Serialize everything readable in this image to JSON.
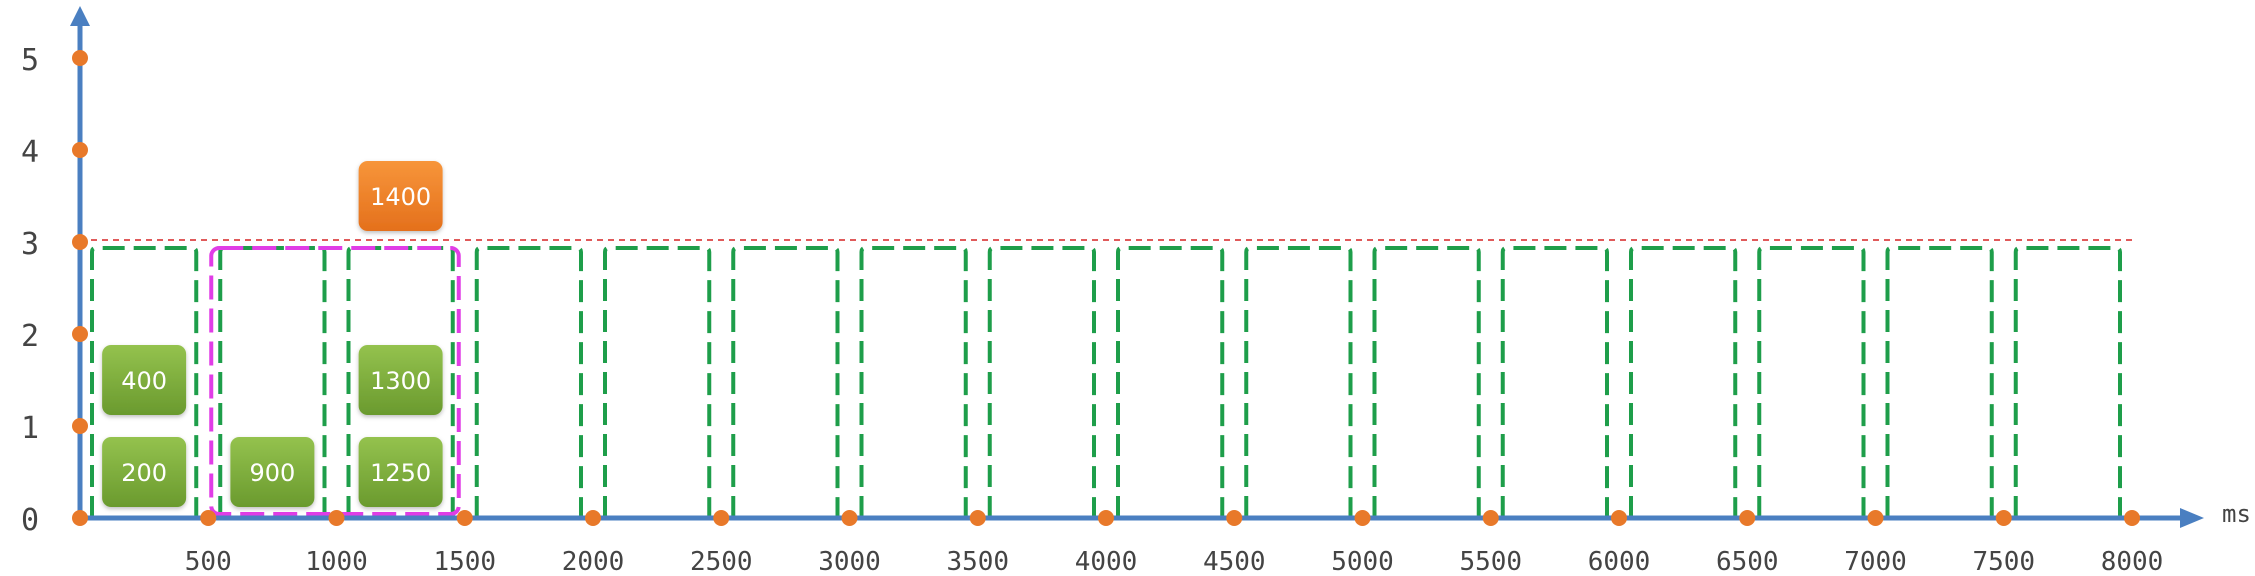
{
  "chart_data": {
    "type": "timeline-diagram",
    "x_unit": "ms",
    "x_ticks": [
      500,
      1000,
      1500,
      2000,
      2500,
      3000,
      3500,
      4000,
      4500,
      5000,
      5500,
      6000,
      6500,
      7000,
      7500,
      8000
    ],
    "y_ticks": [
      0,
      1,
      2,
      3,
      4,
      5
    ],
    "xlim": [
      0,
      8000
    ],
    "ylim": [
      0,
      5
    ],
    "limit_line_y": 3,
    "windows": [
      [
        0,
        500
      ],
      [
        500,
        1000
      ],
      [
        1000,
        1500
      ],
      [
        1500,
        2000
      ],
      [
        2000,
        2500
      ],
      [
        2500,
        3000
      ],
      [
        3000,
        3500
      ],
      [
        3500,
        4000
      ],
      [
        4000,
        4500
      ],
      [
        4500,
        5000
      ],
      [
        5000,
        5500
      ],
      [
        5500,
        6000
      ],
      [
        6000,
        6500
      ],
      [
        6500,
        7000
      ],
      [
        7000,
        7500
      ],
      [
        7500,
        8000
      ]
    ],
    "sliding_window": [
      500,
      1500
    ],
    "requests": [
      {
        "label": "200",
        "window_start": 0,
        "slot": 0,
        "status": "accepted"
      },
      {
        "label": "400",
        "window_start": 0,
        "slot": 1,
        "status": "accepted"
      },
      {
        "label": "900",
        "window_start": 500,
        "slot": 0,
        "status": "accepted"
      },
      {
        "label": "1250",
        "window_start": 1000,
        "slot": 0,
        "status": "accepted"
      },
      {
        "label": "1300",
        "window_start": 1000,
        "slot": 1,
        "status": "accepted"
      },
      {
        "label": "1400",
        "window_start": 1000,
        "slot": 3,
        "status": "rejected"
      }
    ],
    "colors": {
      "axis": "#4a7fc1",
      "dot": "#e8792a",
      "window": "#1e9e4a",
      "sliding": "#e03de6",
      "limit": "#e05a5a",
      "accepted": "#7aa83a",
      "rejected": "#ee7a22",
      "tick_text": "#444444"
    }
  }
}
